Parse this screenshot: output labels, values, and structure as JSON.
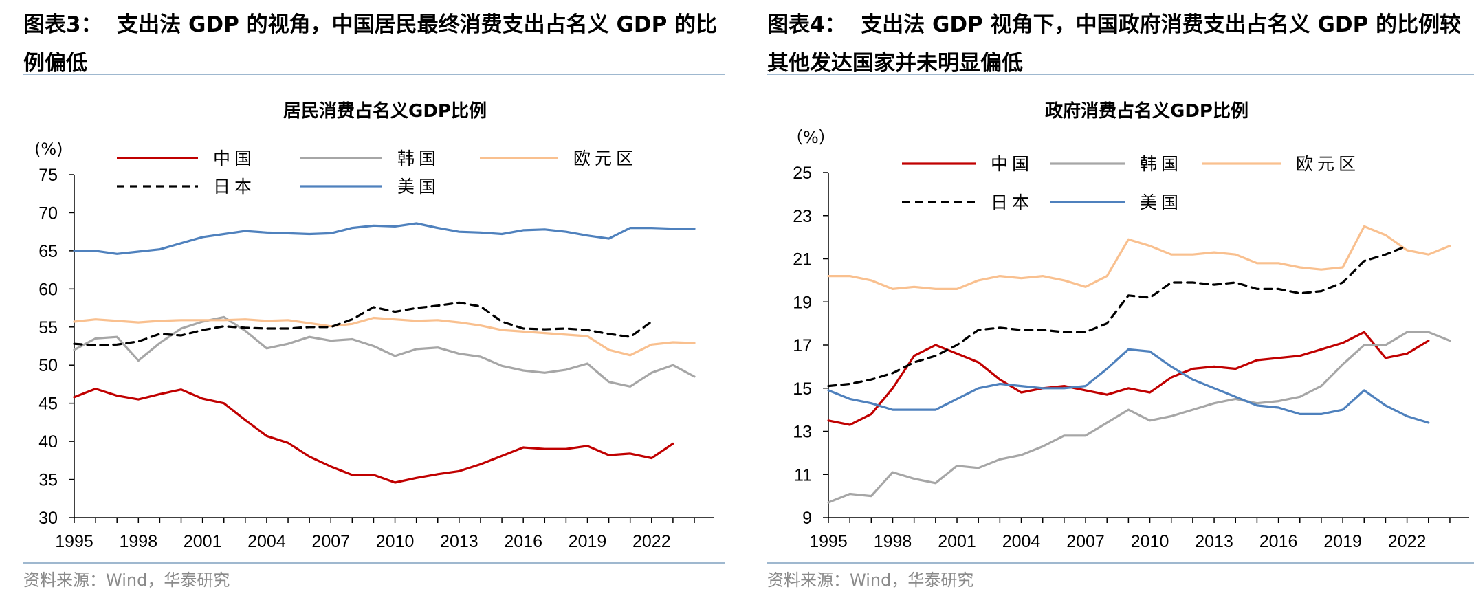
{
  "left": {
    "figure_label": "图表3：",
    "heading": "支出法 GDP 的视角，中国居民最终消费支出占名义 GDP 的比例偏低",
    "source": "资料来源：Wind，华泰研究"
  },
  "right": {
    "figure_label": "图表4：",
    "heading": "支出法 GDP 视角下，中国政府消费支出占名义 GDP 的比例较其他发达国家并未明显偏低",
    "source": "资料来源：Wind，华泰研究"
  },
  "chart_data": [
    {
      "type": "line",
      "title": "居民消费占名义GDP比例",
      "ylabel": "(%)",
      "xlabel": "",
      "ylim": [
        30,
        75
      ],
      "yticks": [
        "30",
        "35",
        "40",
        "45",
        "50",
        "55",
        "60",
        "65",
        "70",
        "75"
      ],
      "xlim": [
        1995,
        2024
      ],
      "xticks": [
        "1995",
        "1998",
        "2001",
        "2004",
        "2007",
        "2010",
        "2013",
        "2016",
        "2019",
        "2022"
      ],
      "series": [
        {
          "name": "中国",
          "color": "#c00000",
          "dash": "solid",
          "x": [
            1995,
            1996,
            1997,
            1998,
            1999,
            2000,
            2001,
            2002,
            2003,
            2004,
            2005,
            2006,
            2007,
            2008,
            2009,
            2010,
            2011,
            2012,
            2013,
            2014,
            2015,
            2016,
            2017,
            2018,
            2019,
            2020,
            2021,
            2022,
            2023
          ],
          "values": [
            45.8,
            46.9,
            46.0,
            45.5,
            46.2,
            46.8,
            45.6,
            45.0,
            42.8,
            40.7,
            39.8,
            38.0,
            36.7,
            35.6,
            35.6,
            34.6,
            35.2,
            35.7,
            36.1,
            37.0,
            38.1,
            39.2,
            39.0,
            39.0,
            39.4,
            38.2,
            38.4,
            37.8,
            39.7
          ]
        },
        {
          "name": "韩国",
          "color": "#a6a6a6",
          "dash": "solid",
          "x": [
            1995,
            1996,
            1997,
            1998,
            1999,
            2000,
            2001,
            2002,
            2003,
            2004,
            2005,
            2006,
            2007,
            2008,
            2009,
            2010,
            2011,
            2012,
            2013,
            2014,
            2015,
            2016,
            2017,
            2018,
            2019,
            2020,
            2021,
            2022,
            2023,
            2024
          ],
          "values": [
            52.0,
            53.5,
            53.7,
            50.6,
            52.9,
            54.8,
            55.7,
            56.3,
            54.5,
            52.2,
            52.8,
            53.7,
            53.2,
            53.4,
            52.5,
            51.2,
            52.1,
            52.3,
            51.5,
            51.1,
            49.9,
            49.3,
            49.0,
            49.4,
            50.2,
            47.8,
            47.2,
            49.0,
            50.0,
            48.5
          ]
        },
        {
          "name": "欧元区",
          "color": "#f9c08f",
          "dash": "solid",
          "x": [
            1995,
            1996,
            1997,
            1998,
            1999,
            2000,
            2001,
            2002,
            2003,
            2004,
            2005,
            2006,
            2007,
            2008,
            2009,
            2010,
            2011,
            2012,
            2013,
            2014,
            2015,
            2016,
            2017,
            2018,
            2019,
            2020,
            2021,
            2022,
            2023,
            2024
          ],
          "values": [
            55.7,
            56.0,
            55.8,
            55.6,
            55.8,
            55.9,
            55.9,
            55.9,
            56.0,
            55.8,
            55.9,
            55.5,
            55.1,
            55.4,
            56.2,
            56.0,
            55.8,
            55.9,
            55.6,
            55.2,
            54.6,
            54.4,
            54.2,
            54.0,
            53.8,
            52.0,
            51.3,
            52.7,
            53.0,
            52.9
          ]
        },
        {
          "name": "日本",
          "color": "#000000",
          "dash": "dashed",
          "x": [
            1995,
            1996,
            1997,
            1998,
            1999,
            2000,
            2001,
            2002,
            2003,
            2004,
            2005,
            2006,
            2007,
            2008,
            2009,
            2010,
            2011,
            2012,
            2013,
            2014,
            2015,
            2016,
            2017,
            2018,
            2019,
            2020,
            2021,
            2022
          ],
          "values": [
            52.8,
            52.6,
            52.7,
            53.1,
            54.1,
            53.9,
            54.6,
            55.1,
            54.9,
            54.8,
            54.8,
            55.0,
            55.0,
            56.0,
            57.6,
            57.0,
            57.5,
            57.8,
            58.2,
            57.7,
            55.7,
            54.8,
            54.7,
            54.8,
            54.6,
            54.1,
            53.7,
            55.7
          ]
        },
        {
          "name": "美国",
          "color": "#4f81bd",
          "dash": "solid",
          "x": [
            1995,
            1996,
            1997,
            1998,
            1999,
            2000,
            2001,
            2002,
            2003,
            2004,
            2005,
            2006,
            2007,
            2008,
            2009,
            2010,
            2011,
            2012,
            2013,
            2014,
            2015,
            2016,
            2017,
            2018,
            2019,
            2020,
            2021,
            2022,
            2023,
            2024
          ],
          "values": [
            65.0,
            65.0,
            64.6,
            64.9,
            65.2,
            66.0,
            66.8,
            67.2,
            67.6,
            67.4,
            67.3,
            67.2,
            67.3,
            68.0,
            68.3,
            68.2,
            68.6,
            68.0,
            67.5,
            67.4,
            67.2,
            67.7,
            67.8,
            67.5,
            67.0,
            66.6,
            68.0,
            68.0,
            67.9,
            67.9
          ]
        }
      ]
    },
    {
      "type": "line",
      "title": "政府消费占名义GDP比例",
      "ylabel": "（%）",
      "xlabel": "",
      "ylim": [
        9,
        25
      ],
      "yticks": [
        "9",
        "11",
        "13",
        "15",
        "17",
        "19",
        "21",
        "23",
        "25"
      ],
      "xlim": [
        1995,
        2024
      ],
      "xticks": [
        "1995",
        "1998",
        "2001",
        "2004",
        "2007",
        "2010",
        "2013",
        "2016",
        "2019",
        "2022"
      ],
      "series": [
        {
          "name": "中国",
          "color": "#c00000",
          "dash": "solid",
          "x": [
            1995,
            1996,
            1997,
            1998,
            1999,
            2000,
            2001,
            2002,
            2003,
            2004,
            2005,
            2006,
            2007,
            2008,
            2009,
            2010,
            2011,
            2012,
            2013,
            2014,
            2015,
            2016,
            2017,
            2018,
            2019,
            2020,
            2021,
            2022,
            2023
          ],
          "values": [
            13.5,
            13.3,
            13.8,
            15.0,
            16.5,
            17.0,
            16.6,
            16.2,
            15.4,
            14.8,
            15.0,
            15.1,
            14.9,
            14.7,
            15.0,
            14.8,
            15.5,
            15.9,
            16.0,
            15.9,
            16.3,
            16.4,
            16.5,
            16.8,
            17.1,
            17.6,
            16.4,
            16.6,
            17.2
          ]
        },
        {
          "name": "韩国",
          "color": "#a6a6a6",
          "dash": "solid",
          "x": [
            1995,
            1996,
            1997,
            1998,
            1999,
            2000,
            2001,
            2002,
            2003,
            2004,
            2005,
            2006,
            2007,
            2008,
            2009,
            2010,
            2011,
            2012,
            2013,
            2014,
            2015,
            2016,
            2017,
            2018,
            2019,
            2020,
            2021,
            2022,
            2023,
            2024
          ],
          "values": [
            9.7,
            10.1,
            10.0,
            11.1,
            10.8,
            10.6,
            11.4,
            11.3,
            11.7,
            11.9,
            12.3,
            12.8,
            12.8,
            13.4,
            14.0,
            13.5,
            13.7,
            14.0,
            14.3,
            14.5,
            14.3,
            14.4,
            14.6,
            15.1,
            16.1,
            17.0,
            17.0,
            17.6,
            17.6,
            17.2
          ]
        },
        {
          "name": "欧元区",
          "color": "#f9c08f",
          "dash": "solid",
          "x": [
            1995,
            1996,
            1997,
            1998,
            1999,
            2000,
            2001,
            2002,
            2003,
            2004,
            2005,
            2006,
            2007,
            2008,
            2009,
            2010,
            2011,
            2012,
            2013,
            2014,
            2015,
            2016,
            2017,
            2018,
            2019,
            2020,
            2021,
            2022,
            2023,
            2024
          ],
          "values": [
            20.2,
            20.2,
            20.0,
            19.6,
            19.7,
            19.6,
            19.6,
            20.0,
            20.2,
            20.1,
            20.2,
            20.0,
            19.7,
            20.2,
            21.9,
            21.6,
            21.2,
            21.2,
            21.3,
            21.2,
            20.8,
            20.8,
            20.6,
            20.5,
            20.6,
            22.5,
            22.1,
            21.4,
            21.2,
            21.6
          ]
        },
        {
          "name": "日本",
          "color": "#000000",
          "dash": "dashed",
          "x": [
            1995,
            1996,
            1997,
            1998,
            1999,
            2000,
            2001,
            2002,
            2003,
            2004,
            2005,
            2006,
            2007,
            2008,
            2009,
            2010,
            2011,
            2012,
            2013,
            2014,
            2015,
            2016,
            2017,
            2018,
            2019,
            2020,
            2021,
            2022
          ],
          "values": [
            15.1,
            15.2,
            15.4,
            15.7,
            16.2,
            16.5,
            17.0,
            17.7,
            17.8,
            17.7,
            17.7,
            17.6,
            17.6,
            18.0,
            19.3,
            19.2,
            19.9,
            19.9,
            19.8,
            19.9,
            19.6,
            19.6,
            19.4,
            19.5,
            19.9,
            20.9,
            21.2,
            21.6
          ]
        },
        {
          "name": "美国",
          "color": "#4f81bd",
          "dash": "solid",
          "x": [
            1995,
            1996,
            1997,
            1998,
            1999,
            2000,
            2001,
            2002,
            2003,
            2004,
            2005,
            2006,
            2007,
            2008,
            2009,
            2010,
            2011,
            2012,
            2013,
            2014,
            2015,
            2016,
            2017,
            2018,
            2019,
            2020,
            2021,
            2022,
            2023
          ],
          "values": [
            14.9,
            14.5,
            14.3,
            14.0,
            14.0,
            14.0,
            14.5,
            15.0,
            15.2,
            15.1,
            15.0,
            15.0,
            15.1,
            15.9,
            16.8,
            16.7,
            16.0,
            15.4,
            15.0,
            14.6,
            14.2,
            14.1,
            13.8,
            13.8,
            14.0,
            14.9,
            14.2,
            13.7,
            13.4
          ]
        }
      ]
    }
  ]
}
